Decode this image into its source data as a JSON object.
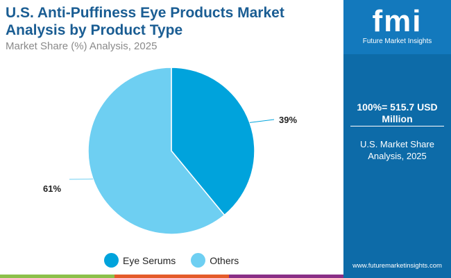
{
  "header": {
    "title": "U.S. Anti-Puffiness Eye Products Market Analysis by Product Type",
    "subtitle": "Market Share (%) Analysis, 2025"
  },
  "panel": {
    "logo_text": "fmi",
    "logo_caption": "Future Market Insights",
    "total": "100%= 515.7 USD Million",
    "market_share": "U.S. Market Share Analysis, 2025",
    "url": "www.futuremarketinsights.com"
  },
  "chart_data": {
    "type": "pie",
    "title": "U.S. Anti-Puffiness Eye Products Market Analysis by Product Type",
    "categories": [
      "Eye Serums",
      "Others"
    ],
    "values": [
      39,
      61
    ],
    "labels": [
      "39%",
      "61%"
    ],
    "colors": [
      "#00a3dc",
      "#6ecff2"
    ],
    "legend": "bottom"
  }
}
